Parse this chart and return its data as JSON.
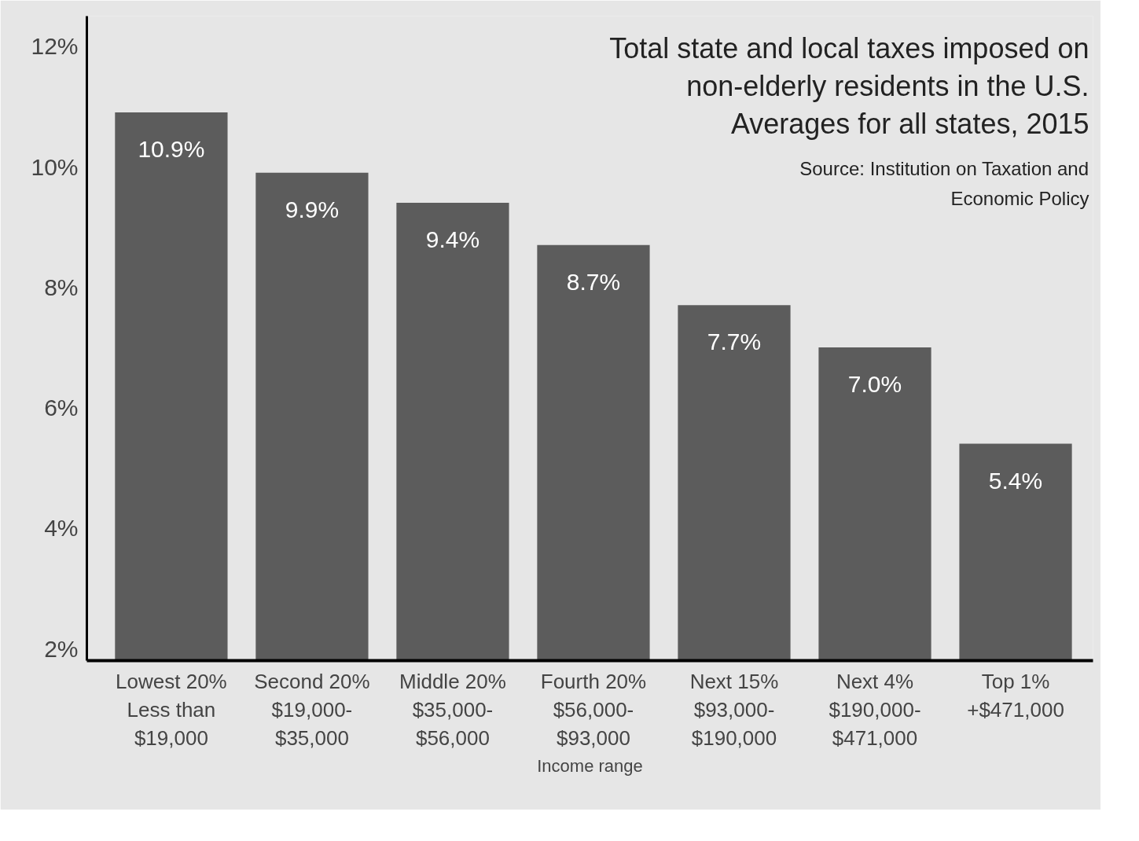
{
  "chart_data": {
    "type": "bar",
    "title": "Total state and local taxes imposed on\nnon-elderly residents in the U.S.\nAverages for all states, 2015",
    "xlabel": "Income range",
    "annotations": [
      "Source: Institution on Taxation and\nEconomic Policy"
    ],
    "categories": [
      "Lowest 20%\nLess than\n$19,000",
      "Second 20%\n$19,000-\n$35,000",
      "Middle 20%\n$35,000-\n$56,000",
      "Fourth 20%\n$56,000-\n$93,000",
      "Next 15%\n$93,000-\n$190,000",
      "Next 4%\n$190,000-\n$471,000",
      "Top 1%\n+$471,000"
    ],
    "values": [
      10.9,
      9.9,
      9.4,
      8.7,
      7.7,
      7.0,
      5.4
    ],
    "value_labels": [
      "10.9%",
      "9.9%",
      "9.4%",
      "8.7%",
      "7.7%",
      "7.0%",
      "5.4%"
    ],
    "color": "#5c5c5c",
    "ylim": [
      1.8,
      12.5
    ],
    "yticks": [
      {
        "value": 2,
        "label": "2%"
      },
      {
        "value": 4,
        "label": "4%"
      },
      {
        "value": 6,
        "label": "6%"
      },
      {
        "value": 8,
        "label": "8%"
      },
      {
        "value": 10,
        "label": "10%"
      },
      {
        "value": 12,
        "label": "12%"
      }
    ],
    "grid": false
  }
}
